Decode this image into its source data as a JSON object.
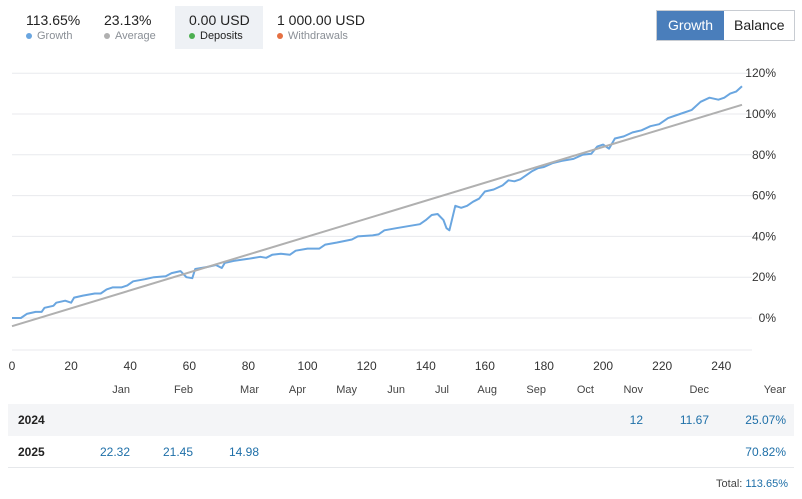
{
  "summary": [
    {
      "value": "113.65%",
      "label": "Growth",
      "color": "#6aa6e0",
      "active": false
    },
    {
      "value": "23.13%",
      "label": "Average",
      "color": "#b0b0b0",
      "active": false
    },
    {
      "value": "0.00 USD",
      "label": "Deposits",
      "color": "#4caf50",
      "active": true
    },
    {
      "value": "1 000.00 USD",
      "label": "Withdrawals",
      "color": "#e57042",
      "active": false
    }
  ],
  "toggle": {
    "growth_label": "Growth",
    "balance_label": "Balance",
    "selected": "Growth"
  },
  "chart_data": {
    "type": "line",
    "xlim": [
      0,
      247
    ],
    "ylim": [
      -15,
      125
    ],
    "x_ticks": [
      0,
      20,
      40,
      60,
      80,
      100,
      120,
      140,
      160,
      180,
      200,
      220,
      240
    ],
    "y_ticks": [
      0,
      20,
      40,
      60,
      80,
      100,
      120
    ],
    "y_tick_labels": [
      "0%",
      "20%",
      "40%",
      "60%",
      "80%",
      "100%",
      "120%"
    ],
    "grid": "horizontal",
    "series": [
      {
        "color": "#6aa6e0",
        "points": [
          [
            0,
            0
          ],
          [
            3,
            0
          ],
          [
            5,
            2
          ],
          [
            8,
            3
          ],
          [
            10,
            3
          ],
          [
            11,
            5
          ],
          [
            14,
            6
          ],
          [
            15,
            7.5
          ],
          [
            18,
            8.5
          ],
          [
            20,
            7.5
          ],
          [
            21,
            10
          ],
          [
            24,
            11
          ],
          [
            28,
            12
          ],
          [
            30,
            12
          ],
          [
            32,
            14
          ],
          [
            34,
            15
          ],
          [
            37,
            15
          ],
          [
            39,
            16
          ],
          [
            41,
            18
          ],
          [
            45,
            19
          ],
          [
            48,
            20
          ],
          [
            52,
            20.5
          ],
          [
            54,
            22
          ],
          [
            57,
            23
          ],
          [
            59,
            20
          ],
          [
            61,
            19.5
          ],
          [
            62,
            24
          ],
          [
            66,
            25
          ],
          [
            69,
            26
          ],
          [
            71,
            24.5
          ],
          [
            72,
            27
          ],
          [
            75,
            28
          ],
          [
            80,
            29
          ],
          [
            84,
            30
          ],
          [
            86,
            29.5
          ],
          [
            88,
            31
          ],
          [
            91,
            31.5
          ],
          [
            94,
            31
          ],
          [
            96,
            33
          ],
          [
            100,
            34
          ],
          [
            104,
            34
          ],
          [
            106,
            36
          ],
          [
            110,
            37
          ],
          [
            115,
            38.5
          ],
          [
            117,
            40
          ],
          [
            122,
            40.5
          ],
          [
            124,
            41
          ],
          [
            126,
            43
          ],
          [
            130,
            44
          ],
          [
            134,
            45
          ],
          [
            138,
            46
          ],
          [
            140,
            48
          ],
          [
            142,
            50.5
          ],
          [
            144,
            51
          ],
          [
            146,
            48
          ],
          [
            147,
            44
          ],
          [
            148,
            43
          ],
          [
            150,
            55
          ],
          [
            152,
            54
          ],
          [
            154,
            55
          ],
          [
            156,
            57
          ],
          [
            158,
            58.5
          ],
          [
            160,
            62
          ],
          [
            163,
            63
          ],
          [
            166,
            65
          ],
          [
            168,
            67.5
          ],
          [
            170,
            67
          ],
          [
            172,
            68
          ],
          [
            174,
            70
          ],
          [
            176,
            72
          ],
          [
            178,
            73.5
          ],
          [
            180,
            74
          ],
          [
            183,
            76
          ],
          [
            186,
            77
          ],
          [
            190,
            78
          ],
          [
            193,
            80
          ],
          [
            196,
            80.5
          ],
          [
            198,
            84
          ],
          [
            200,
            85
          ],
          [
            202,
            83
          ],
          [
            204,
            88
          ],
          [
            207,
            89
          ],
          [
            210,
            91
          ],
          [
            213,
            92
          ],
          [
            216,
            94
          ],
          [
            219,
            95
          ],
          [
            222,
            98
          ],
          [
            226,
            100
          ],
          [
            230,
            102
          ],
          [
            233,
            106
          ],
          [
            236,
            108
          ],
          [
            239,
            107
          ],
          [
            241,
            108
          ],
          [
            243,
            110
          ],
          [
            245,
            111
          ],
          [
            247,
            113.65
          ]
        ]
      },
      {
        "color": "#b0b0b0",
        "points": [
          [
            0,
            -4
          ],
          [
            247,
            104.5
          ]
        ]
      }
    ]
  },
  "table": {
    "months": [
      "Jan",
      "Feb",
      "Mar",
      "Apr",
      "May",
      "Jun",
      "Jul",
      "Aug",
      "Sep",
      "Oct",
      "Nov",
      "Dec",
      "Year"
    ],
    "rows": [
      {
        "year": "2024",
        "values": [
          "",
          "",
          "",
          "",
          "",
          "",
          "",
          "",
          "",
          "",
          "12",
          "11.67",
          "25.07%"
        ]
      },
      {
        "year": "2025",
        "values": [
          "22.32",
          "21.45",
          "14.98",
          "",
          "",
          "",
          "",
          "",
          "",
          "",
          "",
          "",
          "70.82%"
        ]
      }
    ],
    "total_label": "Total:",
    "total_value": "113.65%"
  }
}
